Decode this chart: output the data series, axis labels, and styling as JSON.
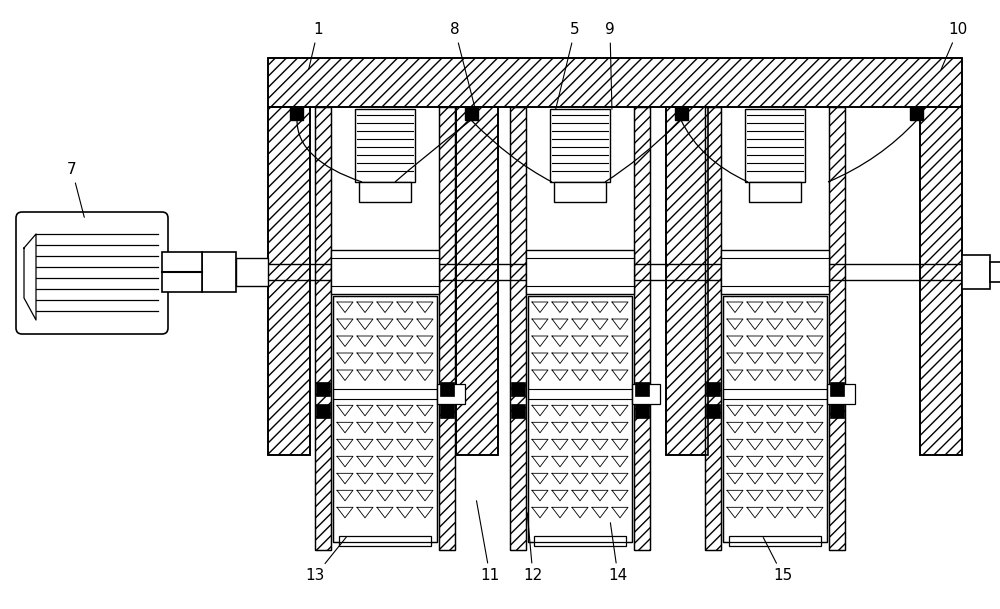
{
  "bg_color": "#ffffff",
  "fig_width": 10.0,
  "fig_height": 6.09,
  "labels_data": [
    [
      "1",
      318,
      30,
      308,
      72
    ],
    [
      "8",
      455,
      30,
      476,
      112
    ],
    [
      "5",
      575,
      30,
      555,
      112
    ],
    [
      "9",
      610,
      30,
      612,
      112
    ],
    [
      "10",
      958,
      30,
      940,
      72
    ],
    [
      "7",
      72,
      170,
      85,
      220
    ],
    [
      "11",
      490,
      576,
      476,
      498
    ],
    [
      "12",
      533,
      576,
      527,
      510
    ],
    [
      "13",
      315,
      576,
      348,
      535
    ],
    [
      "14",
      618,
      576,
      610,
      520
    ],
    [
      "15",
      783,
      576,
      762,
      535
    ]
  ]
}
